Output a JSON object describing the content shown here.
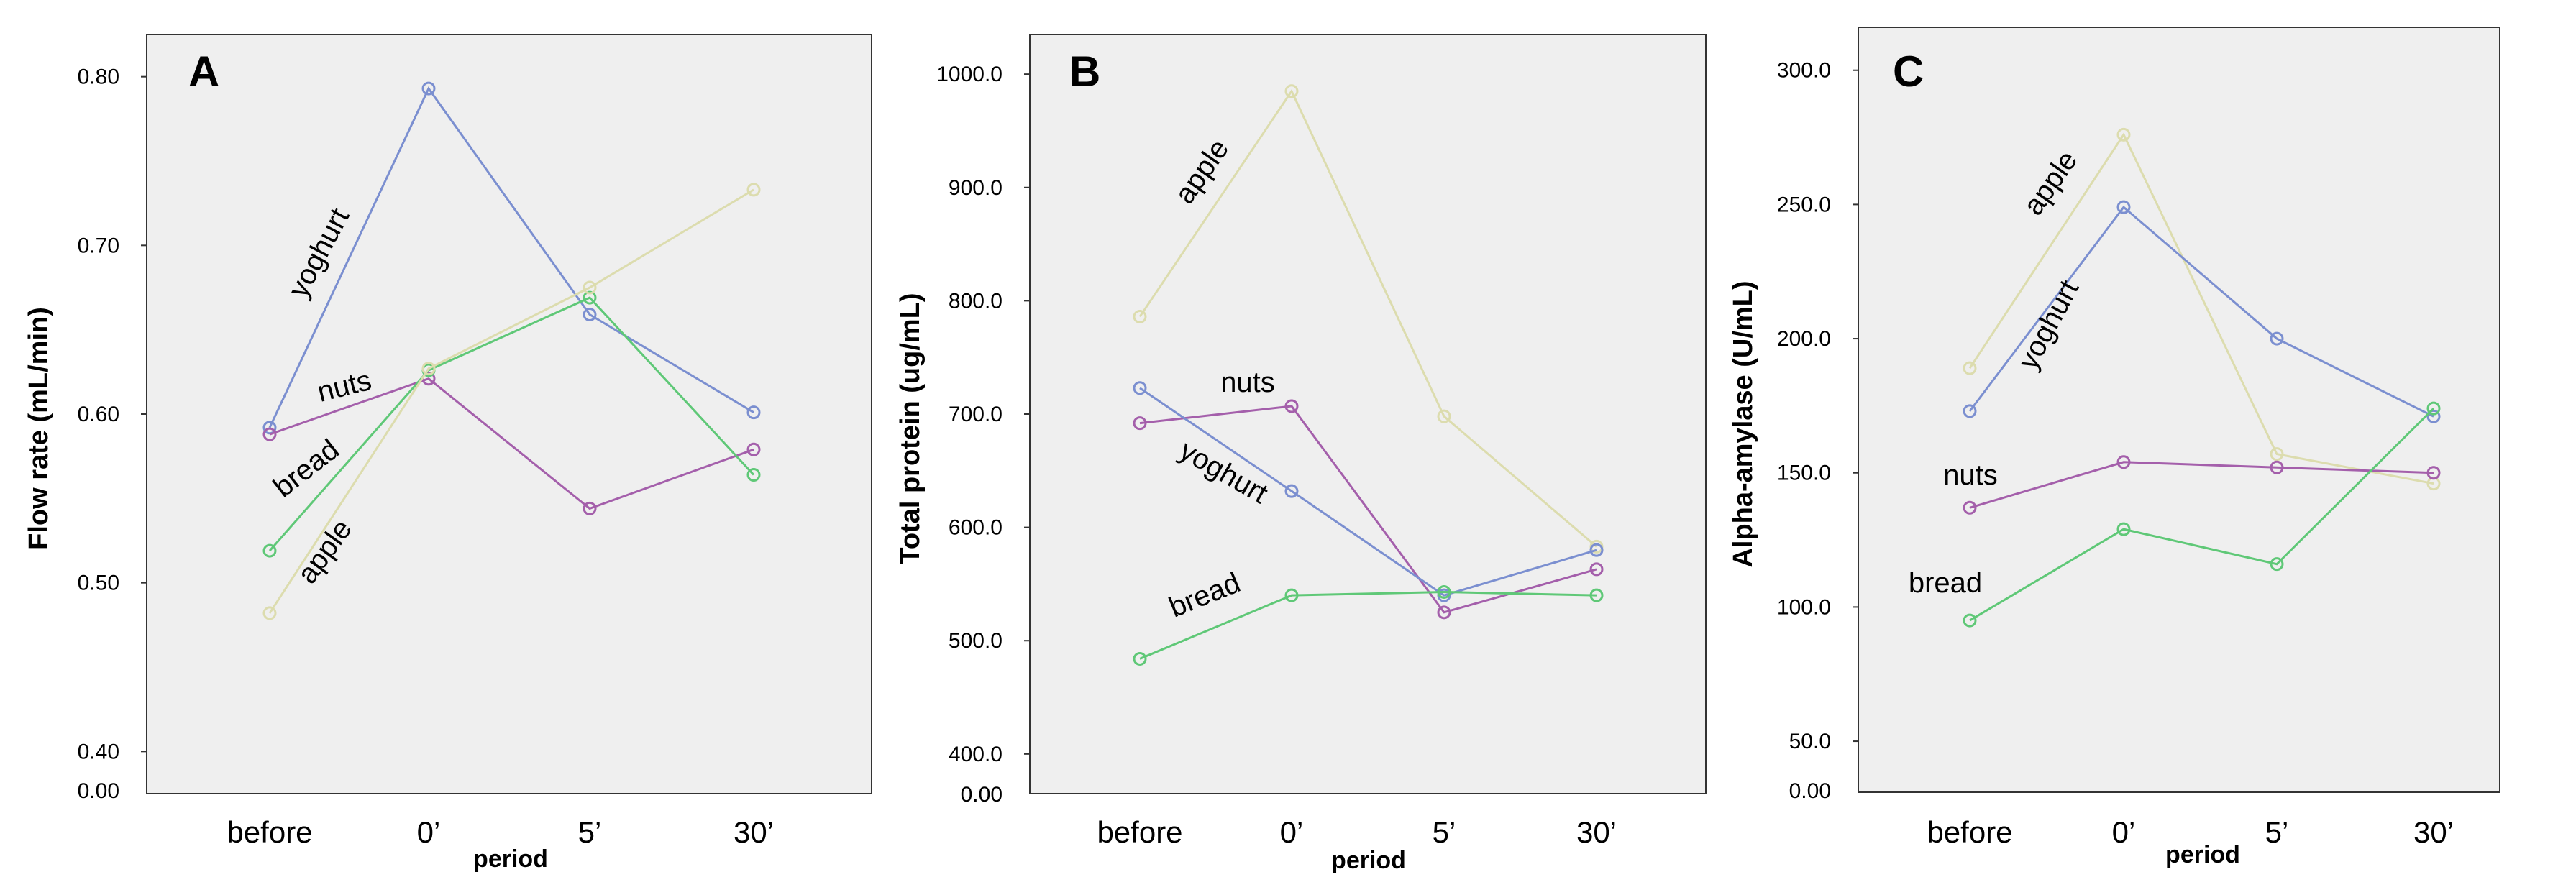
{
  "colors": {
    "yoghurt": "#7b8fd0",
    "nuts": "#a45fab",
    "bread": "#5fc877",
    "apple": "#dcdcae",
    "plot_bg": "#efefef",
    "frame": "#333333"
  },
  "chart_data": [
    {
      "type": "line",
      "panel": "A",
      "title": "",
      "xlabel": "period",
      "ylabel": "Flow rate (mL/min)",
      "categories": [
        "before",
        "0’",
        "5’",
        "30’"
      ],
      "y_ticks": [
        "0.40",
        "0.50",
        "0.60",
        "0.70",
        "0.80"
      ],
      "y_ticks_values": [
        0.4,
        0.5,
        0.6,
        0.7,
        0.8
      ],
      "y_origin_label": "0.00",
      "ylim": [
        0.375,
        0.825
      ],
      "series": [
        {
          "name": "yoghurt",
          "color_key": "yoghurt",
          "values": [
            0.592,
            0.793,
            0.659,
            0.601
          ]
        },
        {
          "name": "nuts",
          "color_key": "nuts",
          "values": [
            0.588,
            0.621,
            0.544,
            0.579
          ]
        },
        {
          "name": "bread",
          "color_key": "bread",
          "values": [
            0.519,
            0.626,
            0.669,
            0.564
          ]
        },
        {
          "name": "apple",
          "color_key": "apple",
          "values": [
            0.482,
            0.627,
            0.675,
            0.733
          ]
        }
      ]
    },
    {
      "type": "line",
      "panel": "B",
      "title": "",
      "xlabel": "period",
      "ylabel": "Total protein (ug/mL)",
      "categories": [
        "before",
        "0’",
        "5’",
        "30’"
      ],
      "y_ticks": [
        "400.0",
        "500.0",
        "600.0",
        "700.0",
        "800.0",
        "900.0",
        "1000.0"
      ],
      "y_ticks_values": [
        400,
        500,
        600,
        700,
        800,
        900,
        1000
      ],
      "y_origin_label": "0.00",
      "ylim": [
        365,
        1035
      ],
      "series": [
        {
          "name": "apple",
          "color_key": "apple",
          "values": [
            786,
            985,
            698,
            583
          ]
        },
        {
          "name": "nuts",
          "color_key": "nuts",
          "values": [
            692,
            707,
            525,
            563
          ]
        },
        {
          "name": "yoghurt",
          "color_key": "yoghurt",
          "values": [
            723,
            632,
            540,
            580
          ]
        },
        {
          "name": "bread",
          "color_key": "bread",
          "values": [
            484,
            540,
            543,
            540
          ]
        }
      ]
    },
    {
      "type": "line",
      "panel": "C",
      "title": "",
      "xlabel": "period",
      "ylabel": "Alpha-amylase (U/mL)",
      "categories": [
        "before",
        "0’",
        "5’",
        "30’"
      ],
      "y_ticks": [
        "50.0",
        "100.0",
        "150.0",
        "200.0",
        "250.0",
        "300.0"
      ],
      "y_ticks_values": [
        50,
        100,
        150,
        200,
        250,
        300
      ],
      "y_origin_label": "0.00",
      "ylim": [
        31,
        316
      ],
      "series": [
        {
          "name": "apple",
          "color_key": "apple",
          "values": [
            189,
            276,
            157,
            146
          ]
        },
        {
          "name": "yoghurt",
          "color_key": "yoghurt",
          "values": [
            173,
            249,
            200,
            171
          ]
        },
        {
          "name": "nuts",
          "color_key": "nuts",
          "values": [
            137,
            154,
            152,
            150
          ]
        },
        {
          "name": "bread",
          "color_key": "bread",
          "values": [
            95,
            129,
            116,
            174
          ]
        }
      ]
    }
  ]
}
